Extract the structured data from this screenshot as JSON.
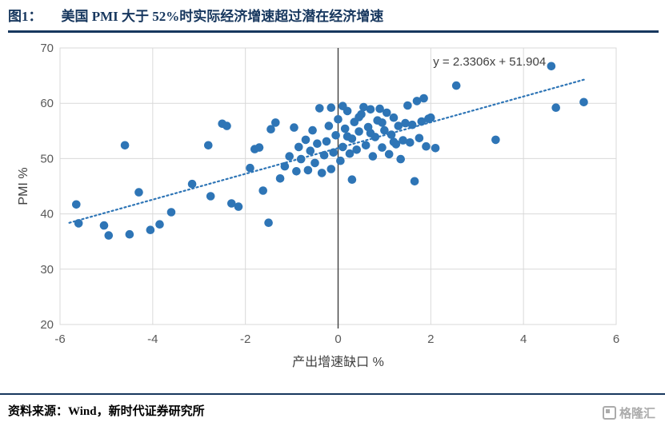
{
  "header": {
    "figure_label": "图1：",
    "title": "美国 PMI 大于 52%时实际经济增速超过潜在经济增速",
    "accent_color": "#17375E"
  },
  "chart_data": {
    "type": "scatter",
    "title": "",
    "xlabel": "产出增速缺口 %",
    "ylabel": "PMI %",
    "xlim": [
      -6,
      6
    ],
    "ylim": [
      20,
      70
    ],
    "x_ticks": [
      -6,
      -4,
      -2,
      0,
      2,
      4,
      6
    ],
    "y_ticks": [
      20,
      30,
      40,
      50,
      60,
      70
    ],
    "grid": true,
    "legend": "none",
    "point_color": "#2E75B6",
    "grid_color": "#D9D9D9",
    "tick_color": "#595959",
    "axis_title_color": "#404040",
    "trendline": {
      "slope": 2.3306,
      "intercept": 51.904,
      "label": "y = 2.3306x + 51.904",
      "x_range": [
        -5.8,
        5.35
      ],
      "style": "dotted",
      "label_anchor": [
        2.05,
        66.8
      ]
    },
    "points": [
      [
        -5.65,
        41.7
      ],
      [
        -5.6,
        38.3
      ],
      [
        -5.05,
        37.9
      ],
      [
        -4.95,
        36.1
      ],
      [
        -4.6,
        52.4
      ],
      [
        -4.5,
        36.3
      ],
      [
        -4.3,
        43.9
      ],
      [
        -4.05,
        37.1
      ],
      [
        -3.85,
        38.1
      ],
      [
        -3.6,
        40.3
      ],
      [
        -3.15,
        45.4
      ],
      [
        -2.8,
        52.4
      ],
      [
        -2.75,
        43.2
      ],
      [
        -2.5,
        56.3
      ],
      [
        -2.4,
        55.9
      ],
      [
        -2.3,
        41.9
      ],
      [
        -2.15,
        41.3
      ],
      [
        -1.9,
        48.3
      ],
      [
        -1.8,
        51.7
      ],
      [
        -1.7,
        52.0
      ],
      [
        -1.62,
        44.2
      ],
      [
        -1.5,
        38.4
      ],
      [
        -1.45,
        55.3
      ],
      [
        -1.35,
        56.5
      ],
      [
        -1.25,
        46.4
      ],
      [
        -1.15,
        48.6
      ],
      [
        -1.05,
        50.4
      ],
      [
        -0.95,
        55.6
      ],
      [
        -0.9,
        47.7
      ],
      [
        -0.85,
        52.1
      ],
      [
        -0.8,
        49.9
      ],
      [
        -0.7,
        53.4
      ],
      [
        -0.65,
        47.9
      ],
      [
        -0.6,
        51.4
      ],
      [
        -0.55,
        55.1
      ],
      [
        -0.5,
        49.2
      ],
      [
        -0.45,
        52.7
      ],
      [
        -0.4,
        59.1
      ],
      [
        -0.35,
        47.4
      ],
      [
        -0.3,
        50.6
      ],
      [
        -0.25,
        53.1
      ],
      [
        -0.2,
        55.9
      ],
      [
        -0.15,
        48.1
      ],
      [
        -0.1,
        51.1
      ],
      [
        -0.05,
        54.2
      ],
      [
        0.0,
        57.1
      ],
      [
        0.05,
        49.6
      ],
      [
        0.1,
        52.1
      ],
      [
        0.15,
        55.4
      ],
      [
        0.2,
        58.6
      ],
      [
        0.25,
        50.9
      ],
      [
        0.3,
        53.6
      ],
      [
        0.35,
        56.6
      ],
      [
        0.4,
        51.6
      ],
      [
        0.45,
        54.9
      ],
      [
        0.5,
        58.0
      ],
      [
        0.55,
        59.3
      ],
      [
        0.6,
        52.4
      ],
      [
        0.65,
        55.7
      ],
      [
        0.7,
        58.9
      ],
      [
        0.75,
        50.4
      ],
      [
        0.8,
        53.9
      ],
      [
        0.85,
        56.9
      ],
      [
        0.9,
        59.0
      ],
      [
        0.95,
        52.0
      ],
      [
        1.0,
        55.1
      ],
      [
        1.05,
        58.3
      ],
      [
        1.1,
        50.8
      ],
      [
        1.15,
        54.3
      ],
      [
        1.2,
        57.4
      ],
      [
        1.25,
        52.6
      ],
      [
        1.3,
        55.9
      ],
      [
        1.35,
        49.9
      ],
      [
        1.4,
        53.3
      ],
      [
        1.45,
        56.4
      ],
      [
        1.5,
        59.6
      ],
      [
        1.55,
        52.9
      ],
      [
        1.6,
        56.1
      ],
      [
        1.65,
        45.9
      ],
      [
        1.7,
        60.4
      ],
      [
        1.75,
        53.7
      ],
      [
        1.8,
        56.7
      ],
      [
        1.85,
        60.9
      ],
      [
        1.9,
        52.2
      ],
      [
        1.95,
        57.2
      ],
      [
        2.0,
        57.4
      ],
      [
        2.1,
        51.9
      ],
      [
        2.55,
        63.2
      ],
      [
        3.4,
        53.4
      ],
      [
        4.6,
        66.7
      ],
      [
        4.7,
        59.2
      ],
      [
        5.3,
        60.2
      ],
      [
        0.3,
        46.2
      ],
      [
        -0.15,
        59.2
      ],
      [
        0.1,
        59.5
      ],
      [
        0.45,
        57.5
      ],
      [
        0.7,
        54.6
      ],
      [
        0.95,
        56.5
      ],
      [
        1.2,
        53.0
      ],
      [
        0.2,
        54.0
      ]
    ]
  },
  "footer": {
    "source_label": "资料来源：",
    "source_text": "Wind，新时代证券研究所",
    "logo_text": "格隆汇"
  }
}
